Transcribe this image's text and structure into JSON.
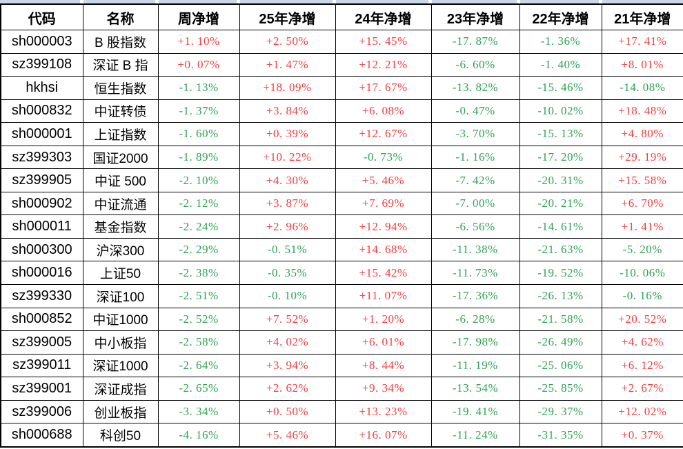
{
  "chart_data": {
    "type": "table",
    "columns": [
      "代码",
      "名称",
      "周净增",
      "25年净增",
      "24年净增",
      "23年净增",
      "22年净增",
      "21年净增"
    ],
    "rows": [
      [
        "sh000003",
        "B 股指数",
        "+1. 10%",
        "+2. 50%",
        "+15. 45%",
        "-17. 87%",
        "-1. 36%",
        "+17. 41%"
      ],
      [
        "sz399108",
        "深证 B 指",
        "+0. 07%",
        "+1. 47%",
        "+12. 21%",
        "-6. 60%",
        "-1. 40%",
        "+8. 01%"
      ],
      [
        "hkhsi",
        "恒生指数",
        "-1. 13%",
        "+18. 09%",
        "+17. 67%",
        "-13. 82%",
        "-15. 46%",
        "-14. 08%"
      ],
      [
        "sh000832",
        "中证转债",
        "-1. 37%",
        "+3. 84%",
        "+6. 08%",
        "-0. 47%",
        "-10. 02%",
        "+18. 48%"
      ],
      [
        "sh000001",
        "上证指数",
        "-1. 60%",
        "+0. 39%",
        "+12. 67%",
        "-3. 70%",
        "-15. 13%",
        "+4. 80%"
      ],
      [
        "sz399303",
        "国证2000",
        "-1. 89%",
        "+10. 22%",
        "-0. 73%",
        "-1. 16%",
        "-17. 20%",
        "+29. 19%"
      ],
      [
        "sz399905",
        "中证 500",
        "-2. 10%",
        "+4. 30%",
        "+5. 46%",
        "-7. 42%",
        "-20. 31%",
        "+15. 58%"
      ],
      [
        "sh000902",
        "中证流通",
        "-2. 12%",
        "+3. 87%",
        "+7. 69%",
        "-7. 00%",
        "-20. 21%",
        "+6. 70%"
      ],
      [
        "sh000011",
        "基金指数",
        "-2. 24%",
        "+2. 96%",
        "+12. 94%",
        "-6. 56%",
        "-14. 61%",
        "+1. 41%"
      ],
      [
        "sh000300",
        "沪深300",
        "-2. 29%",
        "-0. 51%",
        "+14. 68%",
        "-11. 38%",
        "-21. 63%",
        "-5. 20%"
      ],
      [
        "sh000016",
        "上证50",
        "-2. 38%",
        "-0. 35%",
        "+15. 42%",
        "-11. 73%",
        "-19. 52%",
        "-10. 06%"
      ],
      [
        "sz399330",
        "深证100",
        "-2. 51%",
        "-0. 10%",
        "+11. 07%",
        "-17. 36%",
        "-26. 13%",
        "-0. 16%"
      ],
      [
        "sh000852",
        "中证1000",
        "-2. 52%",
        "+7. 52%",
        "+1. 20%",
        "-6. 28%",
        "-21. 58%",
        "+20. 52%"
      ],
      [
        "sz399005",
        "中小板指",
        "-2. 58%",
        "+4. 02%",
        "+6. 01%",
        "-17. 98%",
        "-26. 49%",
        "+4. 62%"
      ],
      [
        "sz399011",
        "深证1000",
        "-2. 64%",
        "+3. 94%",
        "+8. 44%",
        "-11. 19%",
        "-25. 06%",
        "+6. 12%"
      ],
      [
        "sz399001",
        "深证成指",
        "-2. 65%",
        "+2. 62%",
        "+9. 34%",
        "-13. 54%",
        "-25. 85%",
        "+2. 67%"
      ],
      [
        "sz399006",
        "创业板指",
        "-3. 34%",
        "+0. 50%",
        "+13. 23%",
        "-19. 41%",
        "-29. 37%",
        "+12. 02%"
      ],
      [
        "sh000688",
        "科创50",
        "-4. 16%",
        "+5. 46%",
        "+16. 07%",
        "-11. 24%",
        "-31. 35%",
        "+0. 37%"
      ]
    ]
  },
  "colors": {
    "positive": "#f43c3c",
    "negative": "#2ea352",
    "grid": "#000000",
    "top_strip": "#cbd6e6"
  }
}
